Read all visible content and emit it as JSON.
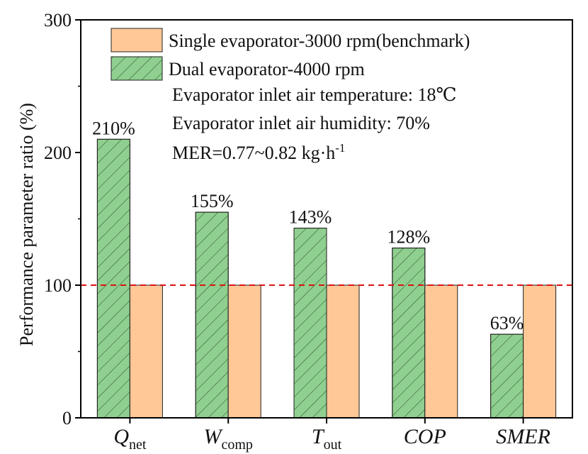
{
  "chart_data": {
    "type": "bar",
    "title": "",
    "xlabel": "",
    "ylabel": "Performance parameter ratio (%)",
    "ylim": [
      0,
      300
    ],
    "yticks": [
      "0",
      "100",
      "200",
      "300"
    ],
    "categories": [
      {
        "main": "Q",
        "sub": "net"
      },
      {
        "main": "W",
        "sub": "comp"
      },
      {
        "main": "T",
        "sub": "out"
      },
      {
        "main": "COP",
        "sub": ""
      },
      {
        "main": "SMER",
        "sub": ""
      }
    ],
    "series": [
      {
        "name": "Dual evaporator-4000 rpm",
        "values": [
          210,
          155,
          143,
          128,
          63
        ],
        "labels": [
          "210%",
          "155%",
          "143%",
          "128%",
          "63%"
        ],
        "fill": "#8fcf8f",
        "hatch": true
      },
      {
        "name": "Single evaporator-3000 rpm(benchmark)",
        "values": [
          100,
          100,
          100,
          100,
          100
        ],
        "fill": "#ffc896",
        "hatch": false
      }
    ],
    "reference_line": {
      "value": 100,
      "color": "#dd1111"
    },
    "annotations": [
      {
        "text": "Evaporator inlet air temperature: 18℃"
      },
      {
        "text": "Evaporator inlet air humidity: 70%"
      },
      {
        "text": "MER=0.77~0.82 kg·h",
        "sup": "-1"
      }
    ],
    "legend_position": "top-right"
  }
}
